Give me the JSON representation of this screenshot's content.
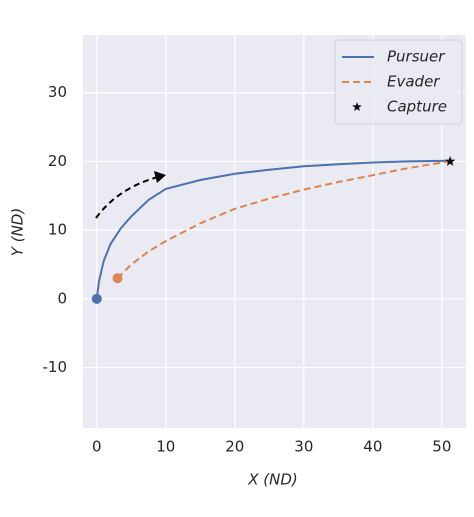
{
  "chart_data": {
    "type": "line",
    "xlabel": "X (ND)",
    "ylabel": "Y (ND)",
    "xlim": [
      -2,
      53.5
    ],
    "ylim": [
      -18.8,
      38.4
    ],
    "xticks": [
      0,
      10,
      20,
      30,
      40,
      50
    ],
    "yticks": [
      -10,
      0,
      10,
      20,
      30
    ],
    "grid": true,
    "legend": "upper right",
    "series": [
      {
        "name": "Pursuer",
        "color": "#4c72b0",
        "style": "solid",
        "x": [
          0,
          0.3,
          1,
          2,
          3.5,
          5,
          7.5,
          10,
          15,
          20,
          25,
          30,
          35,
          40,
          45,
          51
        ],
        "values": [
          0,
          2.5,
          5.5,
          8,
          10.3,
          12,
          14.4,
          16,
          17.3,
          18.2,
          18.8,
          19.3,
          19.6,
          19.85,
          20,
          20.1
        ]
      },
      {
        "name": "Evader",
        "color": "#dd8452",
        "style": "dashed",
        "x": [
          3,
          5,
          7.5,
          10,
          15,
          20,
          25,
          30,
          35,
          40,
          45,
          51
        ],
        "values": [
          3,
          5,
          6.9,
          8.4,
          11,
          13.1,
          14.6,
          15.9,
          17,
          18,
          19,
          20
        ]
      },
      {
        "name": "Capture",
        "color": "#111111",
        "style": "star",
        "x": [
          51.2
        ],
        "values": [
          20
        ]
      }
    ]
  }
}
